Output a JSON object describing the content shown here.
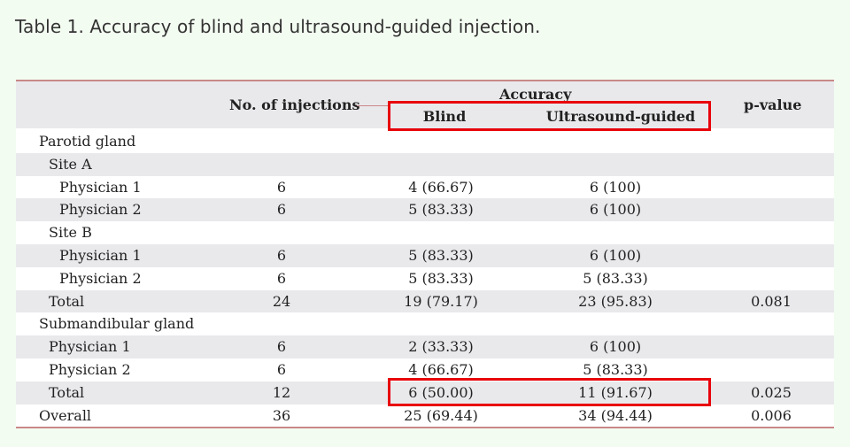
{
  "caption": "Table 1. Accuracy of blind and ultrasound-guided injection.",
  "headers": {
    "injections": "No. of injections",
    "accuracy": "Accuracy",
    "blind": "Blind",
    "ultrasound": "Ultrasound-guided",
    "pvalue": "p-value"
  },
  "rows": [
    {
      "label": "Parotid gland",
      "indent": 0,
      "inj": "",
      "blind": "",
      "us": "",
      "p": ""
    },
    {
      "label": "Site A",
      "indent": 1,
      "inj": "",
      "blind": "",
      "us": "",
      "p": ""
    },
    {
      "label": "Physician 1",
      "indent": 2,
      "inj": "6",
      "blind": "4 (66.67)",
      "us": "6 (100)",
      "p": ""
    },
    {
      "label": "Physician 2",
      "indent": 2,
      "inj": "6",
      "blind": "5 (83.33)",
      "us": "6 (100)",
      "p": ""
    },
    {
      "label": "Site B",
      "indent": 1,
      "inj": "",
      "blind": "",
      "us": "",
      "p": ""
    },
    {
      "label": "Physician 1",
      "indent": 2,
      "inj": "6",
      "blind": "5 (83.33)",
      "us": "6 (100)",
      "p": ""
    },
    {
      "label": "Physician 2",
      "indent": 2,
      "inj": "6",
      "blind": "5 (83.33)",
      "us": "5 (83.33)",
      "p": ""
    },
    {
      "label": "Total",
      "indent": 1,
      "inj": "24",
      "blind": "19 (79.17)",
      "us": "23 (95.83)",
      "p": "0.081"
    },
    {
      "label": "Submandibular gland",
      "indent": 0,
      "inj": "",
      "blind": "",
      "us": "",
      "p": ""
    },
    {
      "label": "Physician 1",
      "indent": 1,
      "inj": "6",
      "blind": "2 (33.33)",
      "us": "6 (100)",
      "p": ""
    },
    {
      "label": "Physician 2",
      "indent": 1,
      "inj": "6",
      "blind": "4 (66.67)",
      "us": "5 (83.33)",
      "p": ""
    },
    {
      "label": "Total",
      "indent": 1,
      "inj": "12",
      "blind": "6 (50.00)",
      "us": "11 (91.67)",
      "p": "0.025"
    },
    {
      "label": "Overall",
      "indent": 0,
      "inj": "36",
      "blind": "25 (69.44)",
      "us": "34 (94.44)",
      "p": "0.006"
    }
  ],
  "highlight_color": "#e8000b"
}
